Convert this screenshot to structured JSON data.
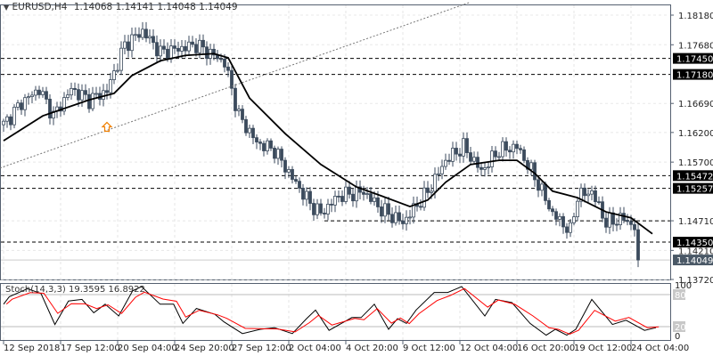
{
  "header": {
    "symbol": "EURUSD,H4",
    "ohlc": "1.14068 1.14141 1.14048 1.14049"
  },
  "colors": {
    "candle": "#3b4a5c",
    "ma": "#000000",
    "stoch_k": "#000000",
    "stoch_d": "#ff0000",
    "arrow": "#f08000",
    "current_price_bg": "#4a5866"
  },
  "chart_data": {
    "type": "candlestick",
    "title": "EURUSD,H4",
    "y_ticks": [
      "1.18180",
      "1.17680",
      "1.16690",
      "1.16200",
      "1.15700",
      "1.14710",
      "1.14210",
      "1.13720"
    ],
    "ylim": [
      1.1372,
      1.1818
    ],
    "x_ticks": [
      {
        "bar": 0,
        "label": "12 Sep 2018"
      },
      {
        "bar": 16,
        "label": "17 Sep 12:00"
      },
      {
        "bar": 32,
        "label": "20 Sep 04:00"
      },
      {
        "bar": 48,
        "label": "24 Sep 20:00"
      },
      {
        "bar": 64,
        "label": "27 Sep 12:00"
      },
      {
        "bar": 80,
        "label": "2 Oct 04:00"
      },
      {
        "bar": 96,
        "label": "4 Oct 20:00"
      },
      {
        "bar": 112,
        "label": "9 Oct 12:00"
      },
      {
        "bar": 128,
        "label": "12 Oct 04:00"
      },
      {
        "bar": 144,
        "label": "16 Oct 20:00"
      },
      {
        "bar": 160,
        "label": "19 Oct 12:00"
      },
      {
        "bar": 176,
        "label": "24 Oct 04:00"
      }
    ],
    "price_path": [
      [
        0,
        1.1633
      ],
      [
        5,
        1.167
      ],
      [
        10,
        1.1693
      ],
      [
        14,
        1.1648
      ],
      [
        19,
        1.1693
      ],
      [
        24,
        1.1675
      ],
      [
        29,
        1.169
      ],
      [
        34,
        1.1768
      ],
      [
        39,
        1.1791
      ],
      [
        44,
        1.1755
      ],
      [
        49,
        1.1761
      ],
      [
        54,
        1.1768
      ],
      [
        59,
        1.175
      ],
      [
        62,
        1.1738
      ],
      [
        66,
        1.1648
      ],
      [
        71,
        1.1603
      ],
      [
        76,
        1.159
      ],
      [
        81,
        1.1543
      ],
      [
        86,
        1.15
      ],
      [
        89,
        1.1483
      ],
      [
        94,
        1.1513
      ],
      [
        101,
        1.152
      ],
      [
        106,
        1.149
      ],
      [
        112,
        1.1468
      ],
      [
        119,
        1.152
      ],
      [
        124,
        1.1573
      ],
      [
        129,
        1.1596
      ],
      [
        134,
        1.1555
      ],
      [
        139,
        1.159
      ],
      [
        144,
        1.1596
      ],
      [
        149,
        1.1545
      ],
      [
        154,
        1.1483
      ],
      [
        159,
        1.1453
      ],
      [
        161,
        1.1513
      ],
      [
        165,
        1.152
      ],
      [
        169,
        1.1468
      ],
      [
        174,
        1.1475
      ],
      [
        177,
        1.146
      ],
      [
        178,
        1.1405
      ]
    ],
    "moving_average": [
      [
        0,
        1.1606
      ],
      [
        11,
        1.1648
      ],
      [
        24,
        1.1675
      ],
      [
        31,
        1.1686
      ],
      [
        36,
        1.1716
      ],
      [
        44,
        1.1741
      ],
      [
        51,
        1.175
      ],
      [
        59,
        1.1753
      ],
      [
        63,
        1.1746
      ],
      [
        69,
        1.1678
      ],
      [
        79,
        1.1618
      ],
      [
        89,
        1.1566
      ],
      [
        99,
        1.1528
      ],
      [
        106,
        1.1513
      ],
      [
        114,
        1.1495
      ],
      [
        119,
        1.1506
      ],
      [
        124,
        1.1536
      ],
      [
        131,
        1.1566
      ],
      [
        139,
        1.1573
      ],
      [
        144,
        1.1573
      ],
      [
        149,
        1.1551
      ],
      [
        154,
        1.1521
      ],
      [
        161,
        1.151
      ],
      [
        169,
        1.1486
      ],
      [
        176,
        1.1476
      ],
      [
        182,
        1.1449
      ]
    ],
    "horizontal_levels": [
      {
        "price": 1.1745,
        "label": "1.17450"
      },
      {
        "price": 1.1718,
        "label": "1.17180"
      },
      {
        "price": 1.15472,
        "label": "1.15472"
      },
      {
        "price": 1.15257,
        "label": "1.15257"
      },
      {
        "price": 1.1435,
        "label": "1.14350"
      }
    ],
    "partial_level": {
      "price": 1.1471,
      "from_bar": 90
    },
    "current_price": {
      "price": 1.14049,
      "label": "1.14049"
    },
    "trendline": {
      "from": [
        -1,
        1.156
      ],
      "to": [
        131,
        1.184
      ]
    },
    "arrow_signal": {
      "bar": 29,
      "price": 1.1628,
      "direction": "up"
    },
    "stochastic": {
      "label": "Stoch(14,3,3) 19.3595 16.8922",
      "levels": [
        80,
        20
      ],
      "axis_labels": [
        "100",
        "80",
        "20",
        "0"
      ],
      "k": [
        [
          0,
          62
        ],
        [
          1.6,
          76
        ],
        [
          6.7,
          91
        ],
        [
          10.5,
          82
        ],
        [
          14.4,
          24
        ],
        [
          18.2,
          68
        ],
        [
          22,
          71
        ],
        [
          25.3,
          46
        ],
        [
          28.5,
          62
        ],
        [
          32.3,
          40
        ],
        [
          36.2,
          87
        ],
        [
          38.7,
          95
        ],
        [
          43.9,
          62
        ],
        [
          47.7,
          62
        ],
        [
          50.3,
          26
        ],
        [
          54.1,
          54
        ],
        [
          59.3,
          43
        ],
        [
          61.8,
          29
        ],
        [
          67,
          7
        ],
        [
          72,
          15
        ],
        [
          76,
          18
        ],
        [
          81,
          7
        ],
        [
          85,
          35
        ],
        [
          87.5,
          51
        ],
        [
          91.3,
          13
        ],
        [
          97.7,
          37
        ],
        [
          100.3,
          37
        ],
        [
          104,
          62
        ],
        [
          108,
          15
        ],
        [
          110.5,
          35
        ],
        [
          113,
          26
        ],
        [
          115.7,
          51
        ],
        [
          120.8,
          84
        ],
        [
          124.6,
          84
        ],
        [
          128.5,
          95
        ],
        [
          135,
          40
        ],
        [
          138,
          71
        ],
        [
          142.6,
          65
        ],
        [
          147.7,
          26
        ],
        [
          152.2,
          4
        ],
        [
          154.8,
          15
        ],
        [
          158,
          4
        ],
        [
          160.5,
          15
        ],
        [
          165,
          71
        ],
        [
          170.8,
          24
        ],
        [
          174.6,
          32
        ],
        [
          179.8,
          13
        ],
        [
          183,
          18
        ]
      ]
    }
  }
}
